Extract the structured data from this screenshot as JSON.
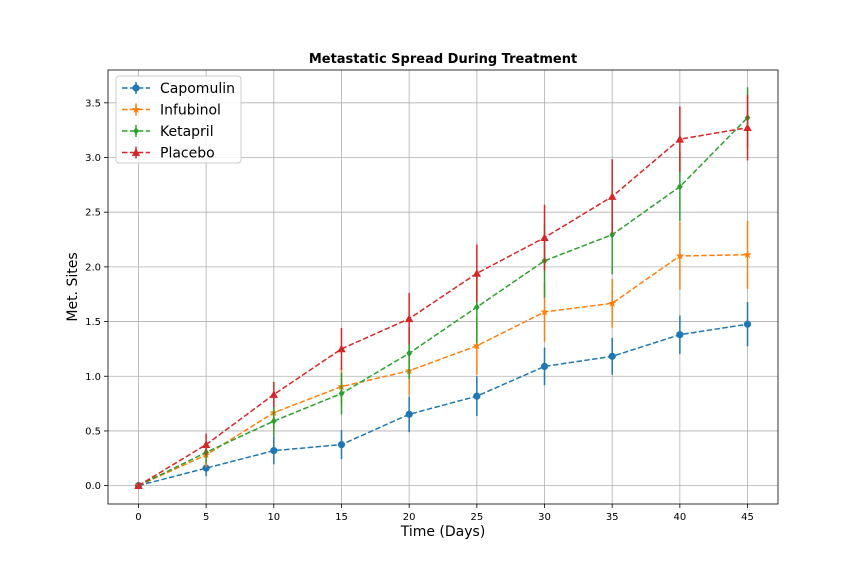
{
  "chart_data": {
    "type": "line",
    "title": "Metastatic Spread During Treatment",
    "xlabel": "Time (Days)",
    "ylabel": "Met. Sites",
    "x": [
      0,
      5,
      10,
      15,
      20,
      25,
      30,
      35,
      40,
      45
    ],
    "xlim": [
      -2.25,
      47.25
    ],
    "ylim": [
      -0.168,
      3.8
    ],
    "xticks": [
      0,
      5,
      10,
      15,
      20,
      25,
      30,
      35,
      40,
      45
    ],
    "yticks": [
      0.0,
      0.5,
      1.0,
      1.5,
      2.0,
      2.5,
      3.0,
      3.5
    ],
    "ytick_labels": [
      "0.0",
      "0.5",
      "1.0",
      "1.5",
      "2.0",
      "2.5",
      "3.0",
      "3.5"
    ],
    "grid": true,
    "legend_position": "top-left",
    "series": [
      {
        "name": "Capomulin",
        "color": "#1f77b4",
        "marker": "circle",
        "values": [
          0.0,
          0.16,
          0.32,
          0.375,
          0.652,
          0.818,
          1.09,
          1.182,
          1.38,
          1.476
        ],
        "errors": [
          0.0,
          0.074,
          0.125,
          0.132,
          0.163,
          0.182,
          0.172,
          0.169,
          0.175,
          0.202
        ]
      },
      {
        "name": "Infubinol",
        "color": "#ff7f0e",
        "marker": "star",
        "values": [
          0.0,
          0.28,
          0.667,
          0.905,
          1.05,
          1.278,
          1.588,
          1.667,
          2.1,
          2.111
        ],
        "errors": [
          0.0,
          0.112,
          0.158,
          0.166,
          0.227,
          0.266,
          0.273,
          0.223,
          0.309,
          0.311
        ]
      },
      {
        "name": "Ketapril",
        "color": "#2ca02c",
        "marker": "diamond",
        "values": [
          0.0,
          0.304,
          0.59,
          0.842,
          1.21,
          1.632,
          2.056,
          2.294,
          2.733,
          3.364
        ],
        "errors": [
          0.0,
          0.098,
          0.143,
          0.192,
          0.236,
          0.332,
          0.339,
          0.362,
          0.316,
          0.278
        ]
      },
      {
        "name": "Placebo",
        "color": "#d62728",
        "marker": "triangle",
        "values": [
          0.0,
          0.375,
          0.833,
          1.25,
          1.526,
          1.941,
          2.267,
          2.643,
          3.167,
          3.273
        ],
        "errors": [
          0.0,
          0.1,
          0.115,
          0.191,
          0.236,
          0.264,
          0.301,
          0.341,
          0.3,
          0.3
        ]
      }
    ]
  }
}
